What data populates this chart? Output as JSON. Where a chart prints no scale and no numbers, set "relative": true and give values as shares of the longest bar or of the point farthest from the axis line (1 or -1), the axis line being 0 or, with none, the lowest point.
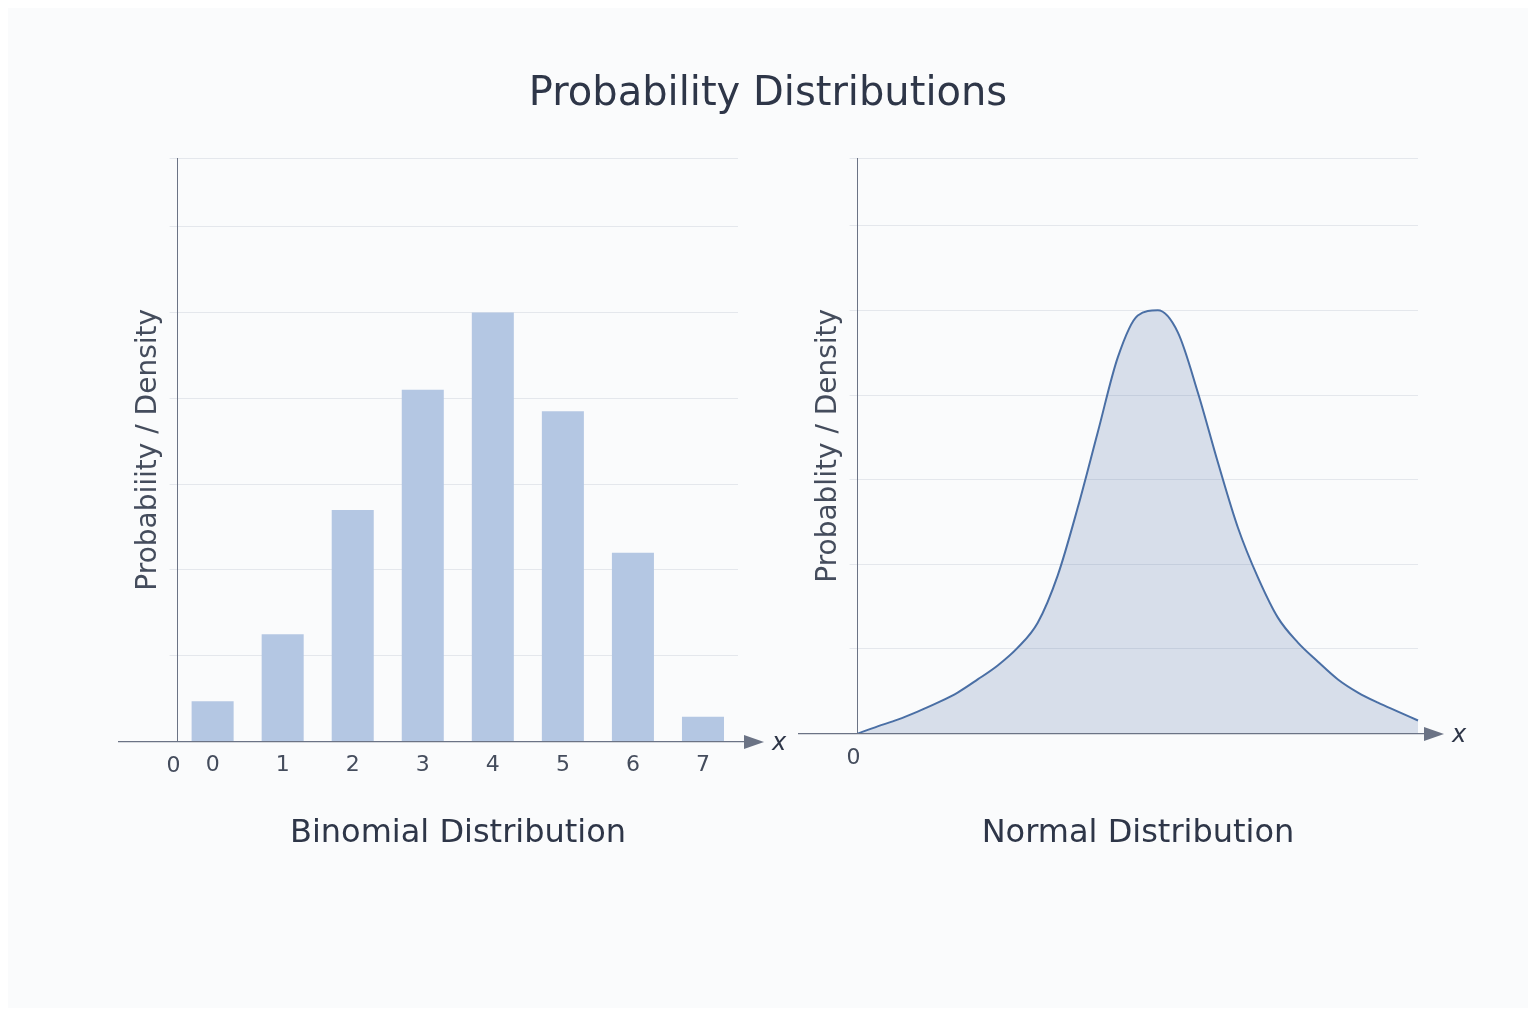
{
  "chart_data": [
    {
      "type": "bar",
      "title": "Probability Distributions",
      "subtitle": "Binomial Distribution",
      "ylabel": "Probabiiity / Density",
      "xlabel": "x",
      "relative": true,
      "grid": "y",
      "annotations": [
        "0"
      ],
      "categories": [
        "0",
        "1",
        "2",
        "3",
        "4",
        "5",
        "6",
        "7"
      ],
      "series": [
        {
          "color": "#b4c7e3",
          "values": [
            0.094,
            0.25,
            0.54,
            0.82,
            1,
            0.77,
            0.44,
            0.058
          ]
        }
      ]
    },
    {
      "type": "area",
      "subtitle": "Normal Distribution",
      "ylabel": "Probablity / Density",
      "xlabel": "x",
      "relative": true,
      "grid": "y",
      "annotations": [
        "0"
      ],
      "categories": [
        null,
        null,
        null,
        null,
        null,
        null,
        null,
        null,
        null,
        null,
        null,
        null,
        null,
        null,
        null,
        null,
        null,
        null,
        null,
        null,
        null,
        null,
        null,
        null,
        null,
        null,
        null,
        null,
        null
      ],
      "series": [
        {
          "color": "#4a6fa5",
          "values": [
            0,
            0.017,
            0.033,
            0.052,
            0.073,
            0.097,
            0.128,
            0.161,
            0.203,
            0.262,
            0.374,
            0.534,
            0.712,
            0.889,
            0.988,
            1,
            0.948,
            0.806,
            0.641,
            0.487,
            0.369,
            0.274,
            0.215,
            0.17,
            0.128,
            0.097,
            0.073,
            0.052,
            0.031
          ]
        }
      ]
    }
  ]
}
